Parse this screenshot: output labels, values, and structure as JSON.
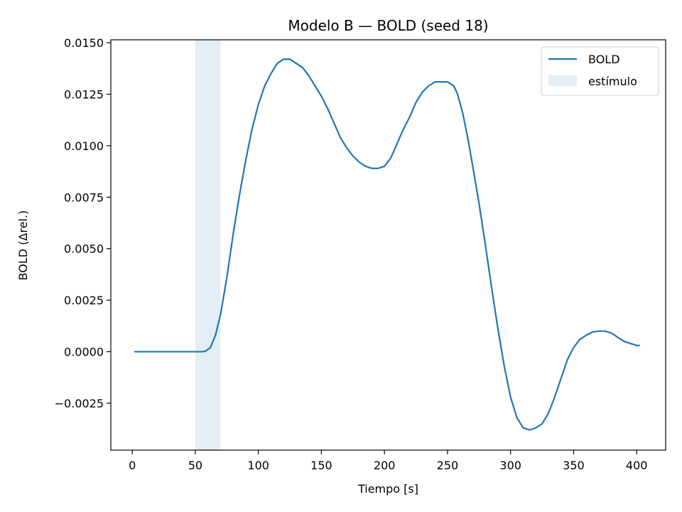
{
  "chart_data": {
    "type": "line",
    "title": "Modelo B — BOLD (seed 18)",
    "xlabel": "Tiempo [s]",
    "ylabel": "BOLD (Δrel.)",
    "xlim": [
      -17,
      423
    ],
    "ylim": [
      -0.00478,
      0.01514
    ],
    "xticks": [
      0,
      50,
      100,
      150,
      200,
      250,
      300,
      350,
      400
    ],
    "xtick_labels": [
      "0",
      "50",
      "100",
      "150",
      "200",
      "250",
      "300",
      "350",
      "400"
    ],
    "yticks": [
      -0.0025,
      0.0,
      0.0025,
      0.005,
      0.0075,
      0.01,
      0.0125,
      0.015
    ],
    "ytick_labels": [
      "−0.0025",
      "0.0000",
      "0.0025",
      "0.0050",
      "0.0075",
      "0.0100",
      "0.0125",
      "0.0150"
    ],
    "grid": false,
    "legend": {
      "position": "top-right",
      "entries": [
        "BOLD",
        "estímulo"
      ]
    },
    "stimulus": {
      "label": "estímulo",
      "x_start": 50,
      "x_end": 70,
      "color": "#e3eef5"
    },
    "series": [
      {
        "name": "BOLD",
        "color": "#1f77b4",
        "x": [
          2,
          30,
          50,
          55,
          58,
          62,
          66,
          70,
          75,
          80,
          85,
          90,
          95,
          100,
          105,
          110,
          115,
          120,
          125,
          130,
          135,
          140,
          145,
          150,
          155,
          160,
          165,
          170,
          175,
          180,
          185,
          190,
          195,
          200,
          205,
          210,
          215,
          220,
          225,
          230,
          235,
          240,
          245,
          250,
          255,
          258,
          262,
          266,
          270,
          275,
          280,
          285,
          290,
          295,
          300,
          305,
          310,
          315,
          320,
          325,
          330,
          335,
          340,
          345,
          350,
          355,
          360,
          365,
          370,
          375,
          380,
          385,
          390,
          395,
          400,
          402
        ],
        "y": [
          0.0,
          0.0,
          0.0,
          0.0,
          2e-05,
          0.0002,
          0.0008,
          0.0018,
          0.0036,
          0.0057,
          0.0076,
          0.0093,
          0.0108,
          0.012,
          0.0129,
          0.0135,
          0.014,
          0.0142,
          0.0142,
          0.014,
          0.0138,
          0.0134,
          0.0129,
          0.0124,
          0.0118,
          0.0111,
          0.0104,
          0.0099,
          0.0095,
          0.0092,
          0.009,
          0.0089,
          0.0089,
          0.009,
          0.0094,
          0.0101,
          0.0108,
          0.0114,
          0.0121,
          0.0126,
          0.0129,
          0.0131,
          0.0131,
          0.0131,
          0.0129,
          0.0125,
          0.0116,
          0.0104,
          0.009,
          0.0072,
          0.0052,
          0.0031,
          0.0011,
          -0.0007,
          -0.0022,
          -0.0032,
          -0.0037,
          -0.0038,
          -0.0037,
          -0.0035,
          -0.003,
          -0.0022,
          -0.0013,
          -0.0004,
          0.0002,
          0.0006,
          0.0008,
          0.00095,
          0.001,
          0.001,
          0.0009,
          0.0007,
          0.0005,
          0.0004,
          0.0003,
          0.0003
        ]
      }
    ]
  }
}
